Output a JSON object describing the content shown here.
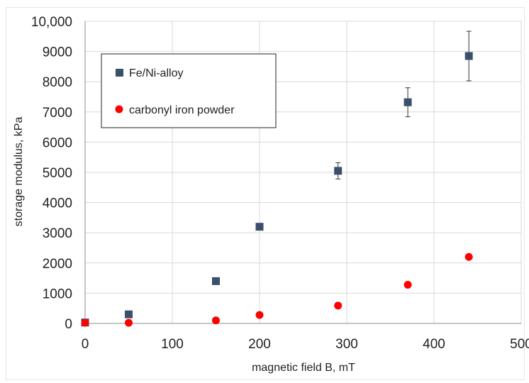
{
  "chart_data": {
    "type": "scatter",
    "xlabel": "magnetic field B, mT",
    "ylabel": "storage modulus, kPa",
    "xlim": [
      0,
      500
    ],
    "ylim": [
      0,
      10000
    ],
    "x_ticks": [
      "0",
      "100",
      "200",
      "300",
      "400",
      "500"
    ],
    "y_ticks": [
      "0",
      "1000",
      "2000",
      "3000",
      "4000",
      "5000",
      "6000",
      "7000",
      "8000",
      "9000",
      "10,000"
    ],
    "grid": "vertical and horizontal major gridlines",
    "legend": "top-left, boxed",
    "series": [
      {
        "name": "Fe/Ni-alloy",
        "marker": "square",
        "color": "#3b4f6b",
        "points": [
          {
            "x": 0,
            "y": 30
          },
          {
            "x": 50,
            "y": 300
          },
          {
            "x": 150,
            "y": 1400
          },
          {
            "x": 200,
            "y": 3200
          },
          {
            "x": 290,
            "y": 5050,
            "err": 270
          },
          {
            "x": 370,
            "y": 7320,
            "err": 480
          },
          {
            "x": 440,
            "y": 8850,
            "err": 820
          }
        ]
      },
      {
        "name": "carbonyl iron powder",
        "marker": "circle",
        "color": "#ff0000",
        "points": [
          {
            "x": 0,
            "y": 20
          },
          {
            "x": 50,
            "y": 20
          },
          {
            "x": 150,
            "y": 100
          },
          {
            "x": 200,
            "y": 280
          },
          {
            "x": 290,
            "y": 590
          },
          {
            "x": 370,
            "y": 1280
          },
          {
            "x": 440,
            "y": 2200
          }
        ]
      }
    ]
  }
}
